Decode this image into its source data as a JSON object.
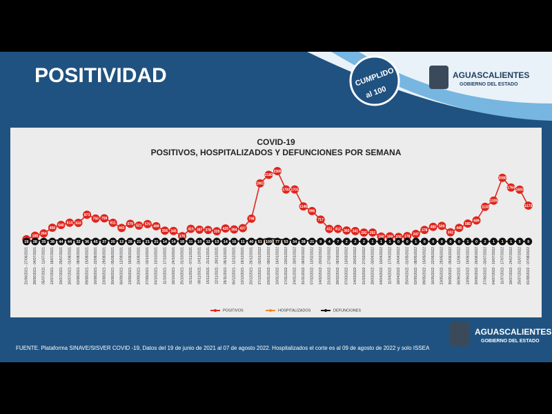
{
  "slide": {
    "title": "POSITIVIDAD",
    "badge": "CUMPLIDO",
    "badge_sub": "al 100",
    "logo_name": "AGUASCALIENTES",
    "logo_sub": "GOBIERNO DEL ESTADO",
    "footer": "FUENTE. Plataforma SINAVE/SISVER COVID -19, Datos del 19 de junio de 2021 al 07 de agosto 2022.  Hospitalizados el corte es al 09 de agosto de 2022 y solo ISSEA"
  },
  "chart_data": {
    "type": "line",
    "title": "COVID-19",
    "subtitle": "POSITIVOS, HOSPITALIZADOS Y DEFUNCIONES POR SEMANA",
    "categories": [
      "21/06/2021 - 27/06/2021",
      "28/06/2021 - 04/07/2021",
      "05/07/2021 - 11/07/2021",
      "12/07/2021 - 18/07/2021",
      "19/07/2021 - 25/07/2021",
      "26/07/2021 - 01/08/2021",
      "02/08/2021 - 08/08/2021",
      "09/08/2021 - 15/08/2021",
      "16/08/2021 - 22/08/2021",
      "23/08/2021 - 29/08/2021",
      "30/08/2021 - 05/09/2021",
      "06/09/2021 - 12/09/2021",
      "13/09/2021 - 19/09/2021",
      "20/09/2021 - 26/09/2021",
      "27/09/2021 - 03/10/2021",
      "04/10/2021 - 10/10/2021",
      "11/10/2021 - 17/10/2021",
      "18/10/2021 - 24/10/2021",
      "25/10/2021 - 31/10/2021",
      "01/11/2021 - 07/11/2021",
      "08/11/2021 - 14/11/2021",
      "15/11/2021 - 21/11/2021",
      "22/11/2021 - 28/11/2021",
      "29/11/2021 - 05/12/2021",
      "06/12/2021 - 12/12/2021",
      "13/12/2021 - 19/12/2021",
      "20/12/2021 - 26/12/2021",
      "27/12/2021 - 02/01/2022",
      "03/01/2022 - 09/01/2022",
      "10/01/2022 - 16/01/2022",
      "17/01/2022 - 23/01/2022",
      "24/01/2022 - 30/01/2022",
      "31/01/2022 - 06/02/2022",
      "07/02/2022 - 13/02/2022",
      "14/02/2022 - 20/02/2022",
      "21/02/2022 - 27/02/2022",
      "28/02/2022 - 06/03/2022",
      "07/03/2022 - 13/03/2022",
      "14/03/2022 - 20/03/2022",
      "21/03/2022 - 27/03/2022",
      "28/03/2022 - 03/04/2022",
      "04/04/2022 - 10/04/2022",
      "11/04/2022 - 17/04/2022",
      "18/04/2022 - 24/04/2022",
      "25/04/2022 - 01/05/2022",
      "02/05/2022 - 08/05/2022",
      "09/05/2022 - 15/05/2022",
      "16/05/2022 - 22/05/2022",
      "23/05/2022 - 29/05/2022",
      "30/05/2022 - 05/06/2022",
      "06/06/2022 - 12/06/2022",
      "13/06/2022 - 19/06/2022",
      "20/06/2022 - 26/06/2022",
      "27/06/2022 - 03/07/2022",
      "04/07/2022 - 10/07/2022",
      "11/07/2022 - 17/07/2022",
      "18/07/2022 - 24/07/2022",
      "25/07/2022 - 31/07/2022",
      "01/08/2022 - 07/08/2022"
    ],
    "series": [
      {
        "name": "POSITIVOS",
        "color": "#e0241b",
        "values": [
          72,
          188,
          264,
          450,
          540,
          614,
          610,
          873,
          750,
          759,
          611,
          443,
          579,
          521,
          570,
          499,
          356,
          345,
          176,
          415,
          387,
          378,
          335,
          425,
          394,
          437,
          748,
          1901,
          2180,
          2300,
          1700,
          1701,
          1146,
          996,
          717,
          411,
          412,
          360,
          341,
          292,
          292,
          160,
          169,
          150,
          178,
          247,
          378,
          480,
          509,
          302,
          445,
          585,
          689,
          1133,
          1335,
          2080,
          1764,
          1693,
          1173
        ]
      },
      {
        "name": "HOSPITALIZADOS",
        "color": "#f08a24",
        "values": [
          25,
          30,
          35,
          40,
          45,
          48,
          45,
          45,
          50,
          42,
          30,
          25,
          28,
          25,
          22,
          20,
          18,
          15,
          14,
          14,
          13,
          12,
          12,
          13,
          14,
          14,
          20,
          40,
          60,
          55,
          40,
          30,
          28,
          20,
          15,
          10,
          8,
          6,
          5,
          5,
          4,
          4,
          3,
          3,
          3,
          4,
          5,
          6,
          6,
          5,
          5,
          6,
          8,
          10,
          12,
          14,
          12,
          10,
          9
        ]
      },
      {
        "name": "DEFUNCIONES",
        "color": "#111111",
        "values": [
          19,
          28,
          35,
          38,
          44,
          44,
          32,
          36,
          45,
          37,
          20,
          12,
          26,
          21,
          21,
          21,
          14,
          14,
          18,
          11,
          10,
          12,
          13,
          14,
          16,
          11,
          40,
          51,
          109,
          77,
          53,
          34,
          38,
          21,
          9,
          4,
          7,
          2,
          2,
          2,
          1,
          1,
          1,
          0,
          0,
          1,
          0,
          0,
          0,
          0,
          0,
          1,
          0,
          2,
          1,
          1,
          1,
          5,
          0
        ]
      }
    ],
    "legend": "bottom"
  }
}
